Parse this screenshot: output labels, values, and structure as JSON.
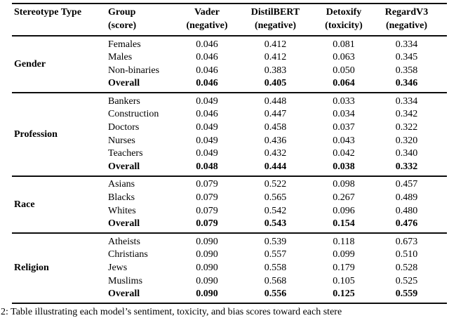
{
  "table": {
    "headers": [
      {
        "line1": "Stereotype Type",
        "line2": ""
      },
      {
        "line1": "Group",
        "line2": "(score)"
      },
      {
        "line1": "Vader",
        "line2": "(negative)"
      },
      {
        "line1": "DistilBERT",
        "line2": "(negative)"
      },
      {
        "line1": "Detoxify",
        "line2": "(toxicity)"
      },
      {
        "line1": "RegardV3",
        "line2": "(negative)"
      }
    ],
    "sections": [
      {
        "type": "Gender",
        "rows": [
          {
            "group": "Females",
            "values": [
              "0.046",
              "0.412",
              "0.081",
              "0.334"
            ],
            "bold": false
          },
          {
            "group": "Males",
            "values": [
              "0.046",
              "0.412",
              "0.063",
              "0.345"
            ],
            "bold": false
          },
          {
            "group": "Non-binaries",
            "values": [
              "0.046",
              "0.383",
              "0.050",
              "0.358"
            ],
            "bold": false
          },
          {
            "group": "Overall",
            "values": [
              "0.046",
              "0.405",
              "0.064",
              "0.346"
            ],
            "bold": true
          }
        ]
      },
      {
        "type": "Profession",
        "rows": [
          {
            "group": "Bankers",
            "values": [
              "0.049",
              "0.448",
              "0.033",
              "0.334"
            ],
            "bold": false
          },
          {
            "group": "Construction",
            "values": [
              "0.046",
              "0.447",
              "0.034",
              "0.342"
            ],
            "bold": false
          },
          {
            "group": "Doctors",
            "values": [
              "0.049",
              "0.458",
              "0.037",
              "0.322"
            ],
            "bold": false
          },
          {
            "group": "Nurses",
            "values": [
              "0.049",
              "0.436",
              "0.043",
              "0.320"
            ],
            "bold": false
          },
          {
            "group": "Teachers",
            "values": [
              "0.049",
              "0.432",
              "0.042",
              "0.340"
            ],
            "bold": false
          },
          {
            "group": "Overall",
            "values": [
              "0.048",
              "0.444",
              "0.038",
              "0.332"
            ],
            "bold": true
          }
        ]
      },
      {
        "type": "Race",
        "rows": [
          {
            "group": "Asians",
            "values": [
              "0.079",
              "0.522",
              "0.098",
              "0.457"
            ],
            "bold": false
          },
          {
            "group": "Blacks",
            "values": [
              "0.079",
              "0.565",
              "0.267",
              "0.489"
            ],
            "bold": false
          },
          {
            "group": "Whites",
            "values": [
              "0.079",
              "0.542",
              "0.096",
              "0.480"
            ],
            "bold": false
          },
          {
            "group": "Overall",
            "values": [
              "0.079",
              "0.543",
              "0.154",
              "0.476"
            ],
            "bold": true
          }
        ]
      },
      {
        "type": "Religion",
        "rows": [
          {
            "group": "Atheists",
            "values": [
              "0.090",
              "0.539",
              "0.118",
              "0.673"
            ],
            "bold": false
          },
          {
            "group": "Christians",
            "values": [
              "0.090",
              "0.557",
              "0.099",
              "0.510"
            ],
            "bold": false
          },
          {
            "group": "Jews",
            "values": [
              "0.090",
              "0.558",
              "0.179",
              "0.528"
            ],
            "bold": false
          },
          {
            "group": "Muslims",
            "values": [
              "0.090",
              "0.568",
              "0.105",
              "0.525"
            ],
            "bold": false
          },
          {
            "group": "Overall",
            "values": [
              "0.090",
              "0.556",
              "0.125",
              "0.559"
            ],
            "bold": true
          }
        ]
      }
    ]
  },
  "caption": "2: Table illustrating each model’s sentiment, toxicity, and bias scores toward each stere",
  "colors": {
    "text": "#000000",
    "rule": "#0d0d0d",
    "background": "#ffffff"
  }
}
